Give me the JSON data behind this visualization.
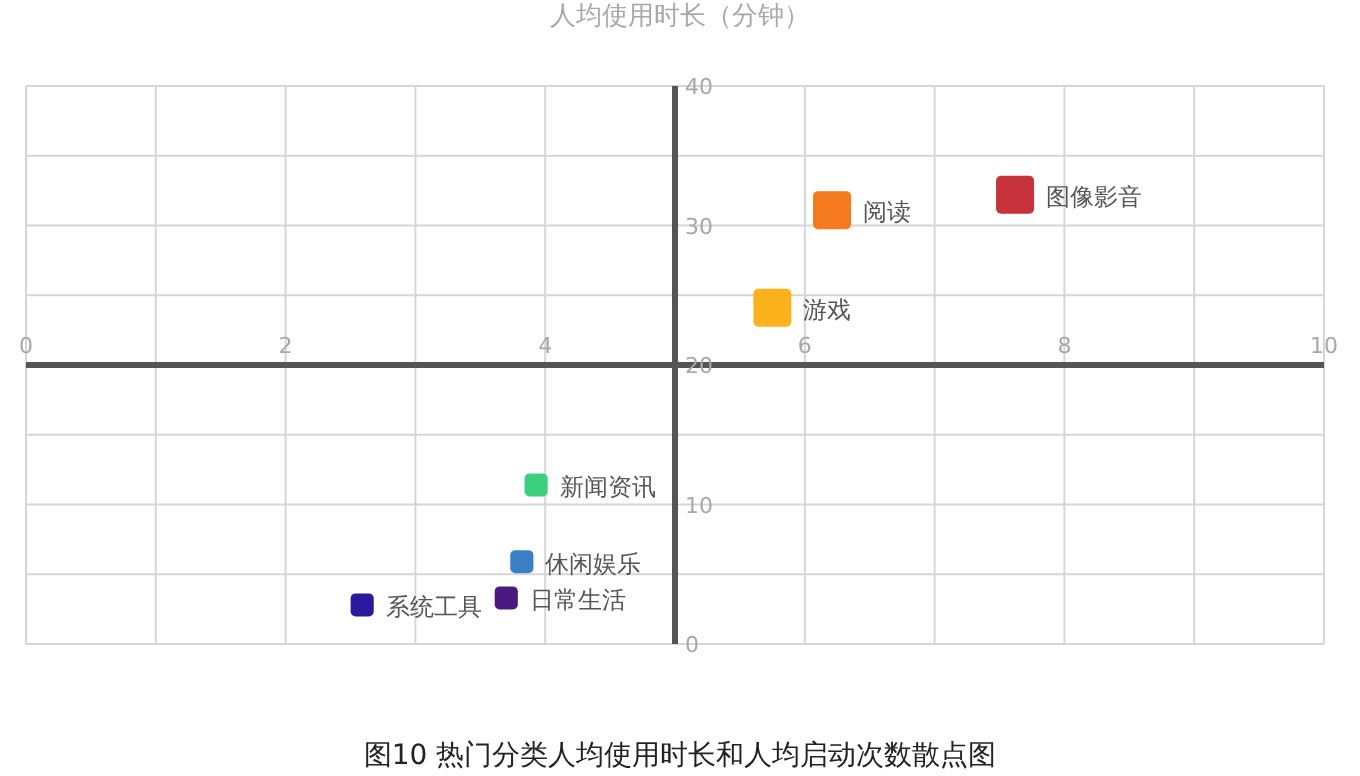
{
  "chart_data": {
    "type": "bubble",
    "title": "图10  热门分类人均使用时长和人均启动次数散点图",
    "ylabel": "人均使用时长（分钟）",
    "xlim": [
      0,
      10
    ],
    "ylim": [
      0,
      40
    ],
    "xticks": [
      0,
      {
        "value": 1,
        "label": null
      },
      2,
      {
        "value": 3,
        "label": null
      },
      4,
      {
        "value": 5,
        "label": null
      },
      6,
      {
        "value": 7,
        "label": null
      },
      8,
      {
        "value": 9,
        "label": null
      },
      10
    ],
    "yticks": [
      0,
      {
        "value": 5,
        "label": null
      },
      10,
      {
        "value": 15,
        "label": null
      },
      20,
      {
        "value": 25,
        "label": null
      },
      30,
      {
        "value": 35,
        "label": null
      },
      40
    ],
    "grid": true,
    "marker": "square",
    "series": [
      {
        "name": "图像影音",
        "color": "#c8323a",
        "x": [
          7.62
        ],
        "values": [
          32.2
        ],
        "sizes": [
          1
        ]
      },
      {
        "name": "阅读",
        "color": "#f57a1f",
        "x": [
          6.21
        ],
        "values": [
          31.1
        ],
        "sizes": [
          1
        ]
      },
      {
        "name": "游戏",
        "color": "#fbb21c",
        "x": [
          5.75
        ],
        "values": [
          24.1
        ],
        "sizes": [
          1
        ]
      },
      {
        "name": "新闻资讯",
        "color": "#3ccf7c",
        "x": [
          3.93
        ],
        "values": [
          11.4
        ],
        "sizes": [
          0.37
        ]
      },
      {
        "name": "休闲娱乐",
        "color": "#3a7fc8",
        "x": [
          3.82
        ],
        "values": [
          5.9
        ],
        "sizes": [
          0.37
        ]
      },
      {
        "name": "日常生活",
        "color": "#4a1a80",
        "x": [
          3.7
        ],
        "values": [
          3.3
        ],
        "sizes": [
          0.37
        ]
      },
      {
        "name": "系统工具",
        "color": "#2a1aa0",
        "x": [
          2.59
        ],
        "values": [
          2.8
        ],
        "sizes": [
          0.37
        ]
      }
    ]
  }
}
